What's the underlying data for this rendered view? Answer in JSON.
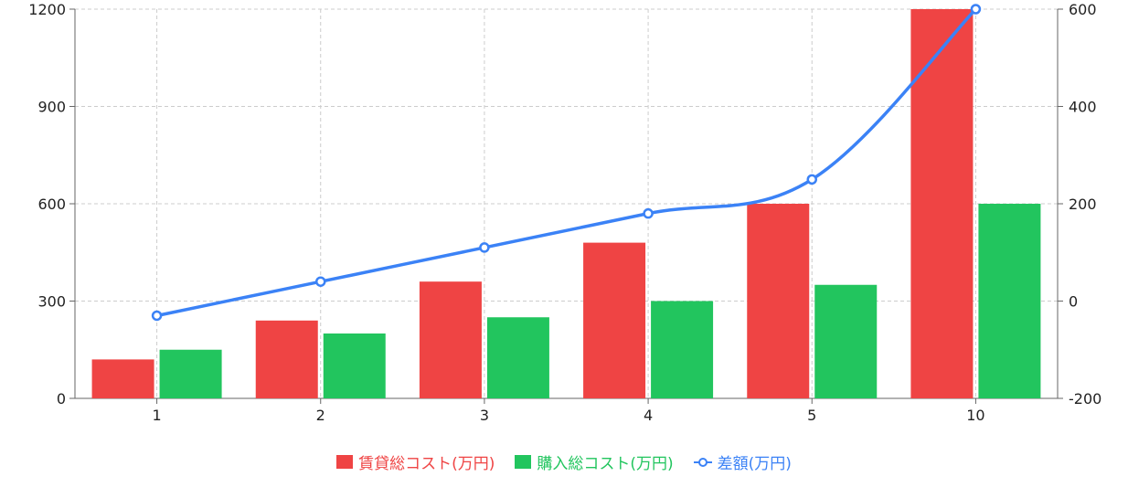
{
  "chart_data": {
    "type": "bar",
    "categories": [
      "1",
      "2",
      "3",
      "4",
      "5",
      "10"
    ],
    "series": [
      {
        "name": "賃貸総コスト(万円)",
        "type": "bar",
        "axis": "left",
        "color": "#ef4444",
        "values": [
          120,
          240,
          360,
          480,
          600,
          1200
        ]
      },
      {
        "name": "購入総コスト(万円)",
        "type": "bar",
        "axis": "left",
        "color": "#22c55e",
        "values": [
          150,
          200,
          250,
          300,
          350,
          600
        ]
      },
      {
        "name": "差額(万円)",
        "type": "line",
        "axis": "right",
        "color": "#3b82f6",
        "values": [
          -30,
          40,
          110,
          180,
          250,
          600
        ]
      }
    ],
    "left_axis": {
      "ylim": [
        0,
        1200
      ],
      "ticks": [
        "0",
        "300",
        "600",
        "900",
        "1200"
      ]
    },
    "right_axis": {
      "ylim": [
        -200,
        600
      ],
      "ticks": [
        "-200",
        "0",
        "200",
        "400",
        "600"
      ]
    },
    "grid": true,
    "legend_position": "bottom-center"
  }
}
